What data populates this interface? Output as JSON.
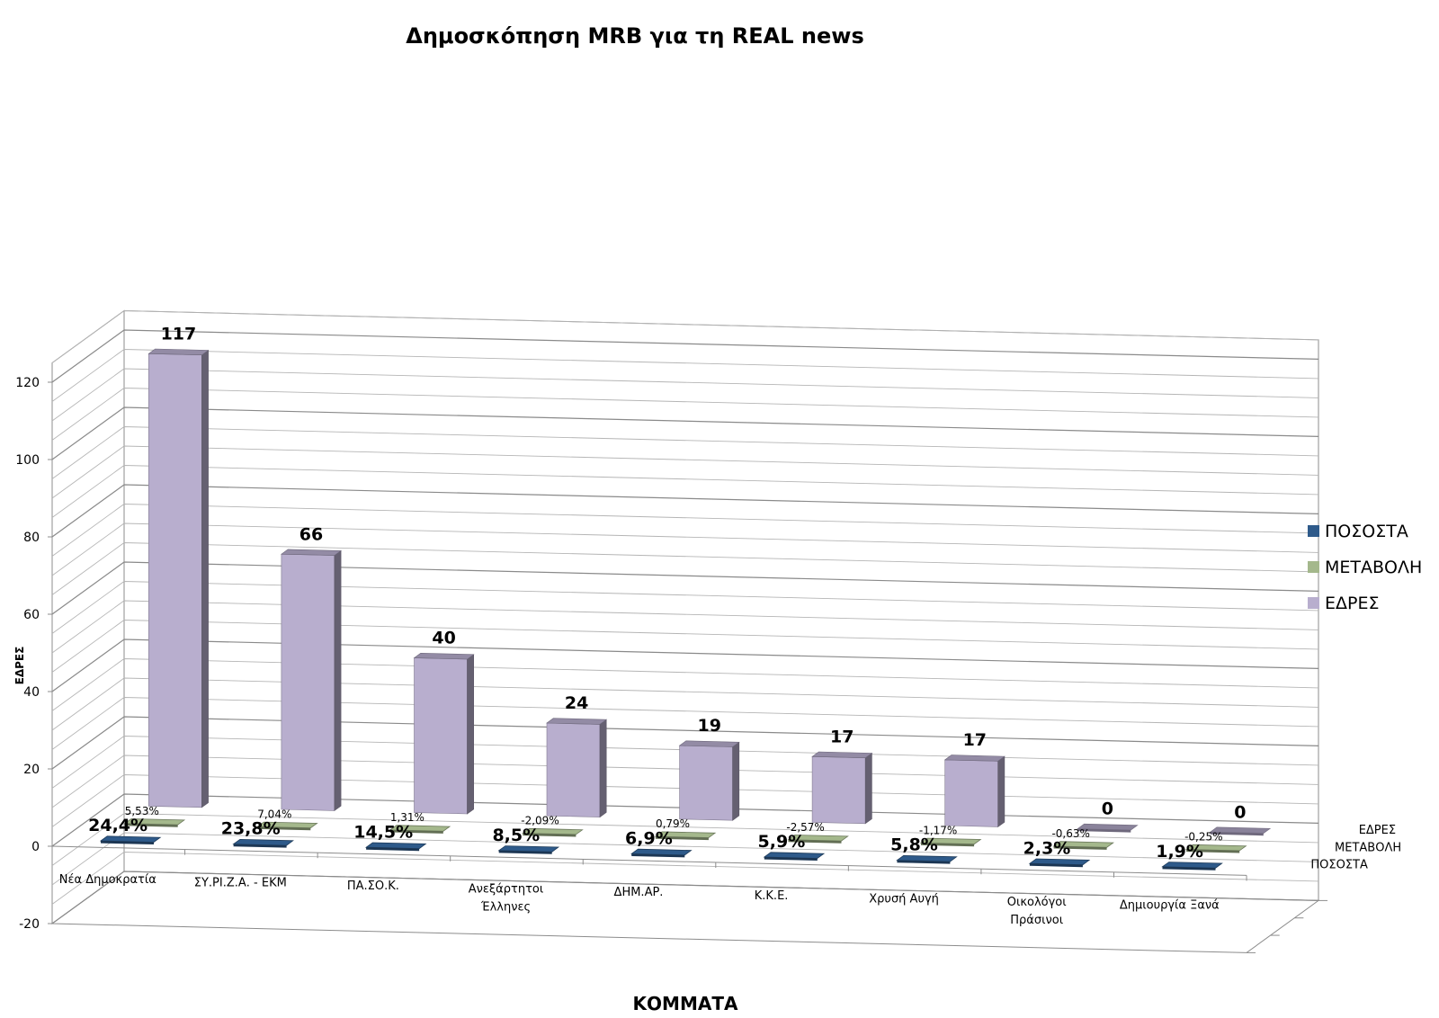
{
  "chart_data": {
    "type": "bar",
    "title": "Δημοσκόπηση MRB για τη  REAL news",
    "xlabel": "ΚΟΜΜΑΤΑ",
    "ylabel": "ΕΔΡΕΣ",
    "ylim": [
      -20,
      120
    ],
    "yticks": [
      "-20",
      "0",
      "20",
      "40",
      "60",
      "80",
      "100",
      "120"
    ],
    "grid": true,
    "legend_position": "right",
    "categories": [
      "Νέα Δημοκρατία",
      "ΣΥ.ΡΙ.Ζ.Α. - ΕΚΜ",
      "ΠΑ.ΣΟ.Κ.",
      "Ανεξάρτητοι Έλληνες",
      "ΔΗΜ.ΑΡ.",
      "Κ.Κ.Ε.",
      "Χρυσή Αυγή",
      "Οικολόγοι Πράσινοι",
      "Δημιουργία Ξανά"
    ],
    "category_lines": [
      [
        "Νέα Δημοκρατία"
      ],
      [
        "ΣΥ.ΡΙ.Ζ.Α. - ΕΚΜ"
      ],
      [
        "ΠΑ.ΣΟ.Κ."
      ],
      [
        "Ανεξάρτητοι",
        "Έλληνες"
      ],
      [
        "ΔΗΜ.ΑΡ."
      ],
      [
        "Κ.Κ.Ε."
      ],
      [
        "Χρυσή Αυγή"
      ],
      [
        "Οικολόγοι",
        "Πράσινοι"
      ],
      [
        "Δημιουργία Ξανά"
      ]
    ],
    "series": [
      {
        "name": "ΠΟΣΟΣΤΑ",
        "color": "#2e5a8a",
        "values": [
          24.4,
          23.8,
          14.5,
          8.5,
          6.9,
          5.9,
          5.8,
          2.3,
          1.9
        ],
        "labels": [
          "24,4%",
          "23,8%",
          "14,5%",
          "8,5%",
          "6,9%",
          "5,9%",
          "5,8%",
          "2,3%",
          "1,9%"
        ]
      },
      {
        "name": "ΜΕΤΑΒΟΛΗ",
        "color": "#a4b88c",
        "values": [
          5.53,
          7.04,
          1.31,
          -2.09,
          0.79,
          -2.57,
          -1.17,
          -0.63,
          -0.25
        ],
        "labels": [
          "5,53%",
          "7,04%",
          "1,31%",
          "-2,09%",
          "0,79%",
          "-2,57%",
          "-1,17%",
          "-0,63%",
          "-0,25%"
        ]
      },
      {
        "name": "ΕΔΡΕΣ",
        "color": "#b8aece",
        "values": [
          117,
          66,
          40,
          24,
          19,
          17,
          17,
          0,
          0
        ],
        "labels": [
          "117",
          "66",
          "40",
          "24",
          "19",
          "17",
          "17",
          "0",
          "0"
        ]
      }
    ],
    "depth_labels": [
      "ΕΔΡΕΣ",
      "ΜΕΤΑΒΟΛΗ",
      "ΠΟΣΟΣΤΑ"
    ]
  }
}
